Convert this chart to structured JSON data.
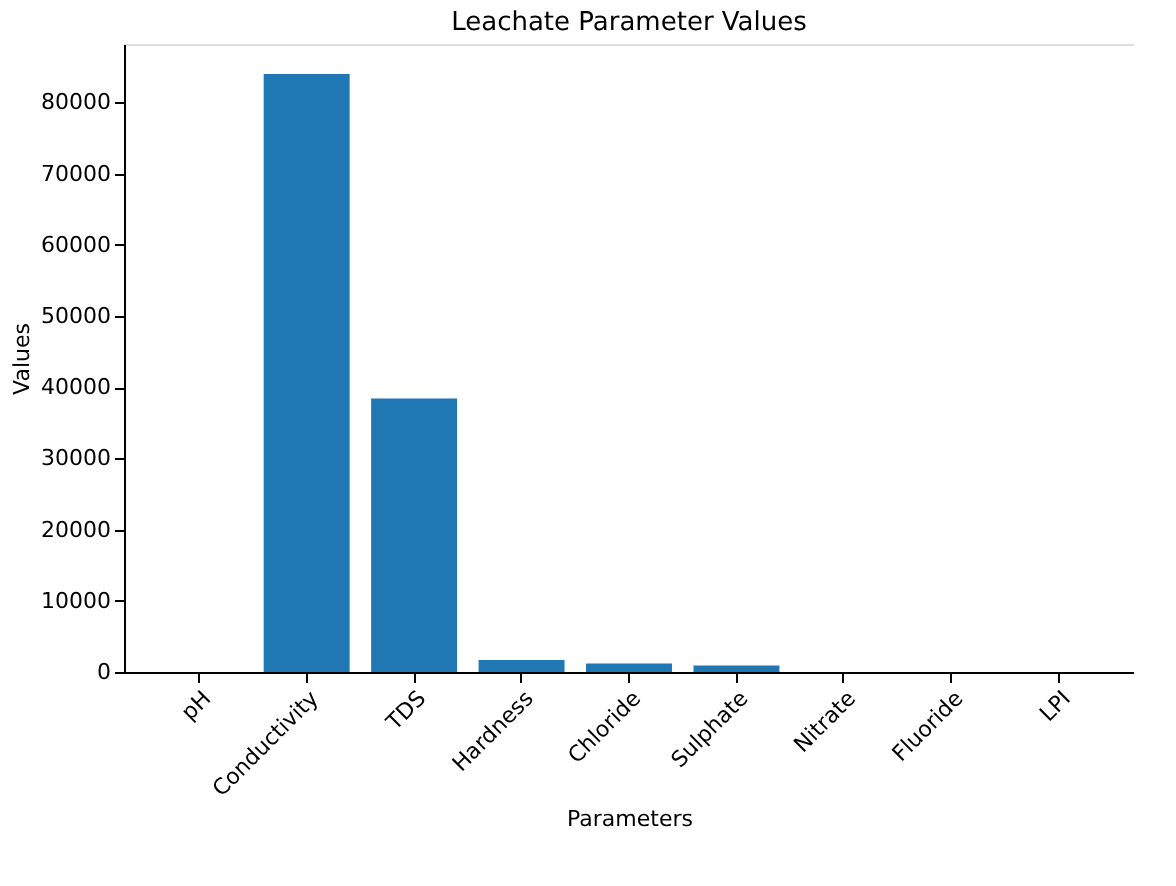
{
  "chart_data": {
    "type": "bar",
    "title": "Leachate Parameter Values",
    "xlabel": "Parameters",
    "ylabel": "Values",
    "categories": [
      "pH",
      "Conductivity",
      "TDS",
      "Hardness",
      "Chloride",
      "Sulphate",
      "Nitrate",
      "Fluoride",
      "LPI"
    ],
    "values": [
      0,
      84000,
      38400,
      1700,
      1200,
      900,
      0,
      0,
      0
    ],
    "color": "#1f77b4",
    "ylim": [
      0,
      88200
    ],
    "yticks": [
      0,
      10000,
      20000,
      30000,
      40000,
      50000,
      60000,
      70000,
      80000
    ],
    "grid": false
  }
}
